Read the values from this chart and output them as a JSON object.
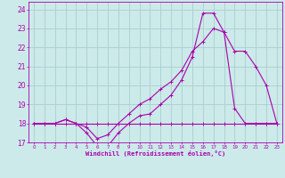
{
  "background_color": "#cceaea",
  "grid_color": "#aacece",
  "line_color": "#aa00aa",
  "xlim": [
    -0.5,
    23.5
  ],
  "ylim": [
    17,
    24.4
  ],
  "xlabel": "Windchill (Refroidissement éolien,°C)",
  "xticks": [
    0,
    1,
    2,
    3,
    4,
    5,
    6,
    7,
    8,
    9,
    10,
    11,
    12,
    13,
    14,
    15,
    16,
    17,
    18,
    19,
    20,
    21,
    22,
    23
  ],
  "yticks": [
    17,
    18,
    19,
    20,
    21,
    22,
    23,
    24
  ],
  "series1_x": [
    0,
    1,
    2,
    3,
    4,
    5,
    6,
    7,
    8,
    9,
    10,
    11,
    12,
    13,
    14,
    15,
    16,
    17,
    18,
    19,
    20,
    21,
    22,
    23
  ],
  "series1_y": [
    18.0,
    18.0,
    18.0,
    18.2,
    18.0,
    17.5,
    16.8,
    16.8,
    17.5,
    18.0,
    18.4,
    18.5,
    19.0,
    19.5,
    20.3,
    21.5,
    23.8,
    23.8,
    22.8,
    18.8,
    18.0,
    18.0,
    18.0,
    18.0
  ],
  "series2_x": [
    0,
    1,
    2,
    3,
    4,
    5,
    6,
    7,
    8,
    9,
    10,
    11,
    12,
    13,
    14,
    15,
    16,
    17,
    18,
    19,
    20,
    21,
    22,
    23
  ],
  "series2_y": [
    18.0,
    18.0,
    18.0,
    18.2,
    18.0,
    17.8,
    17.2,
    17.4,
    18.0,
    18.5,
    19.0,
    19.3,
    19.8,
    20.2,
    20.8,
    21.8,
    22.3,
    23.0,
    22.8,
    21.8,
    21.8,
    21.0,
    20.0,
    18.0
  ],
  "series3_x": [
    0,
    1,
    2,
    3,
    4,
    5,
    6,
    7,
    8,
    9,
    10,
    11,
    12,
    13,
    14,
    15,
    16,
    17,
    18,
    19,
    20,
    21,
    22,
    23
  ],
  "series3_y": [
    18.0,
    18.0,
    18.0,
    18.0,
    18.0,
    18.0,
    18.0,
    18.0,
    18.0,
    18.0,
    18.0,
    18.0,
    18.0,
    18.0,
    18.0,
    18.0,
    18.0,
    18.0,
    18.0,
    18.0,
    18.0,
    18.0,
    18.0,
    18.0
  ]
}
